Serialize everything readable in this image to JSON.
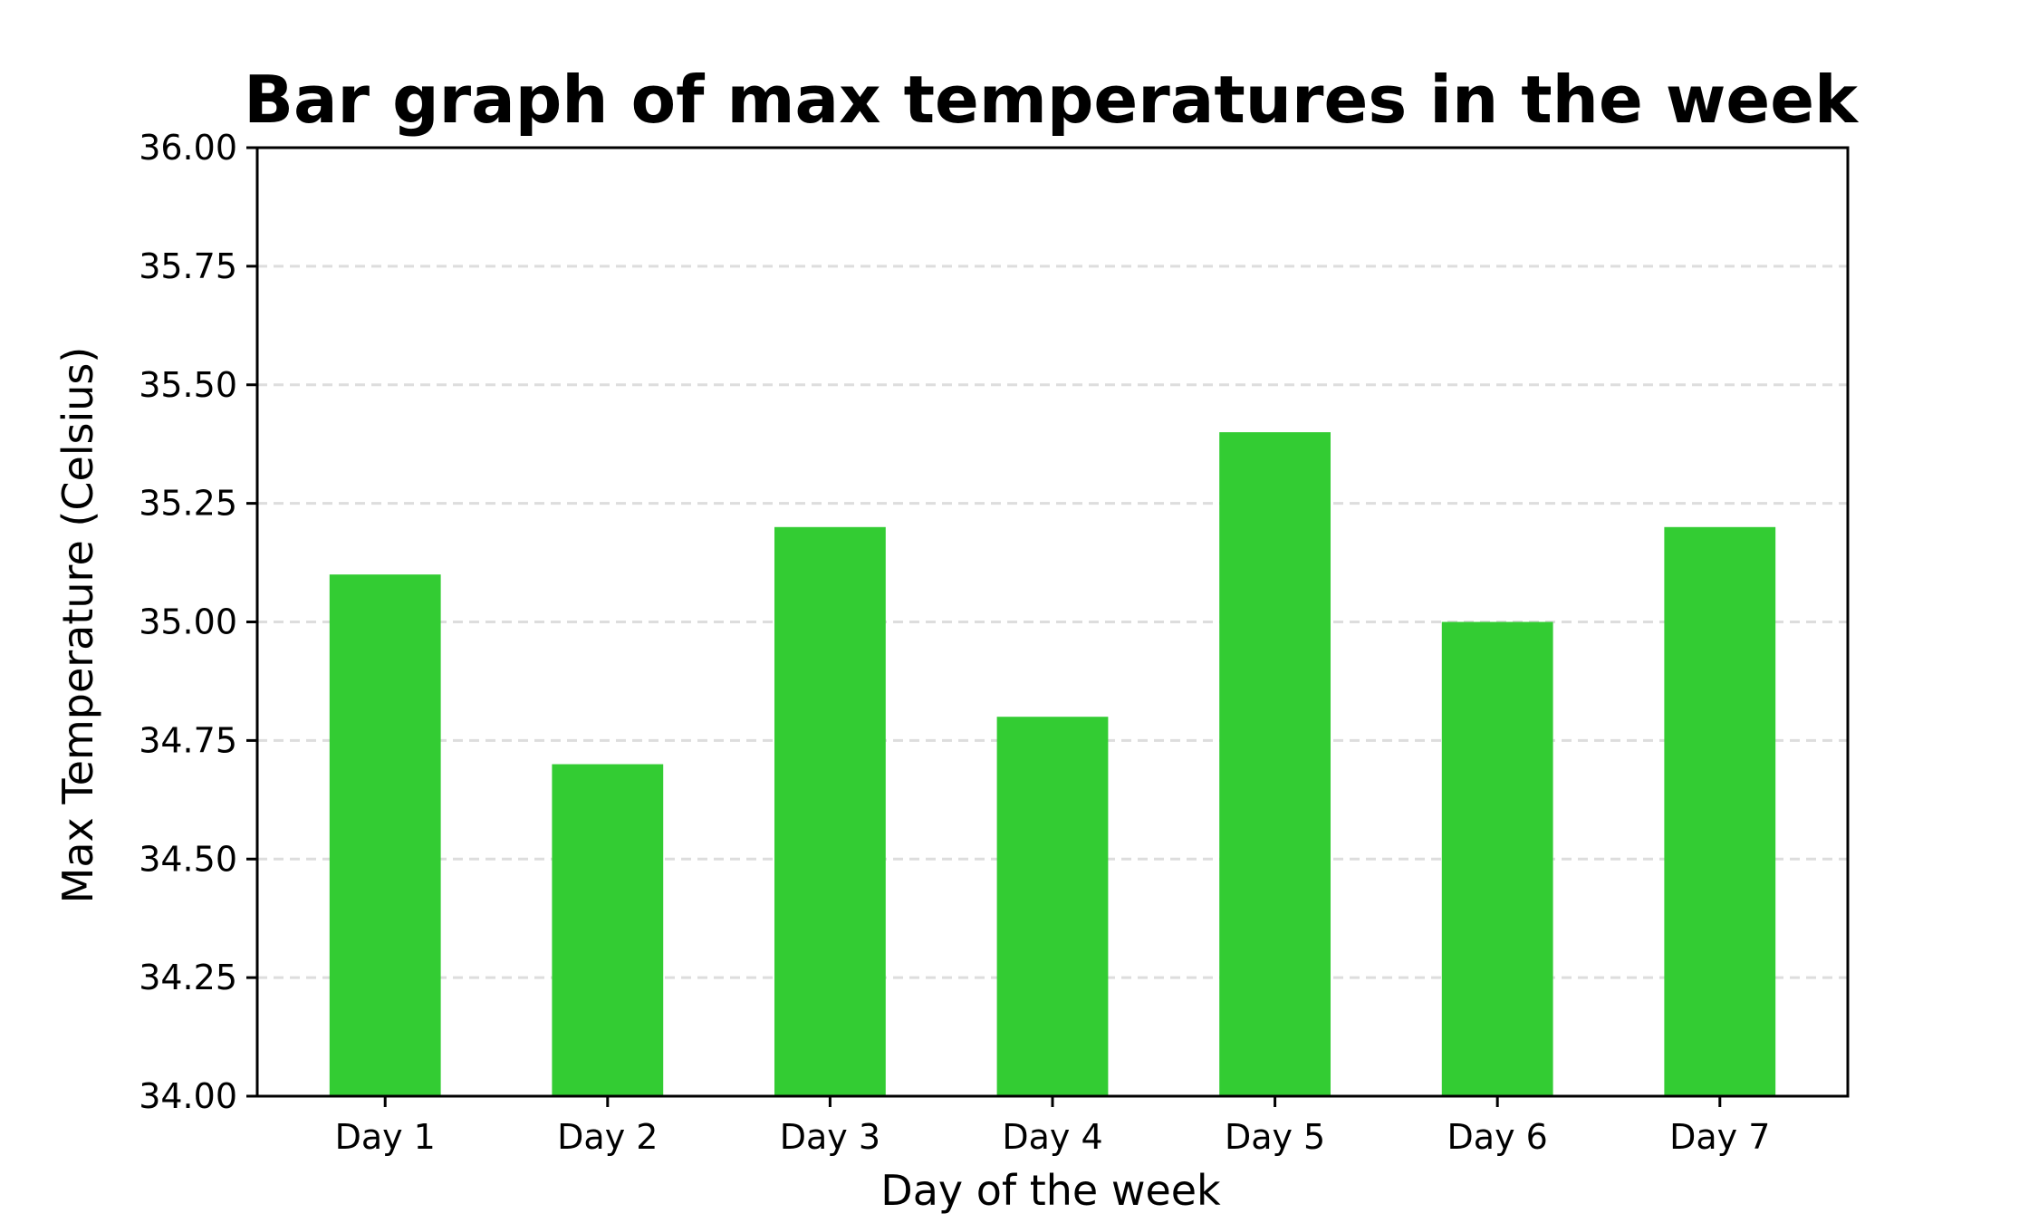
{
  "chart_data": {
    "type": "bar",
    "title": "Bar graph of max temperatures in the week",
    "xlabel": "Day of the week",
    "ylabel": "Max Temperature (Celsius)",
    "categories": [
      "Day 1",
      "Day 2",
      "Day 3",
      "Day 4",
      "Day 5",
      "Day 6",
      "Day 7"
    ],
    "values": [
      35.1,
      34.7,
      35.2,
      34.8,
      35.4,
      35.0,
      35.2
    ],
    "ylim": [
      34.0,
      36.0
    ],
    "yticks": [
      "34.00",
      "34.25",
      "34.50",
      "34.75",
      "35.00",
      "35.25",
      "35.50",
      "35.75",
      "36.00"
    ],
    "grid": "horizontal dashed",
    "bar_color": "#33cc33",
    "grid_color": "#dddddd"
  }
}
